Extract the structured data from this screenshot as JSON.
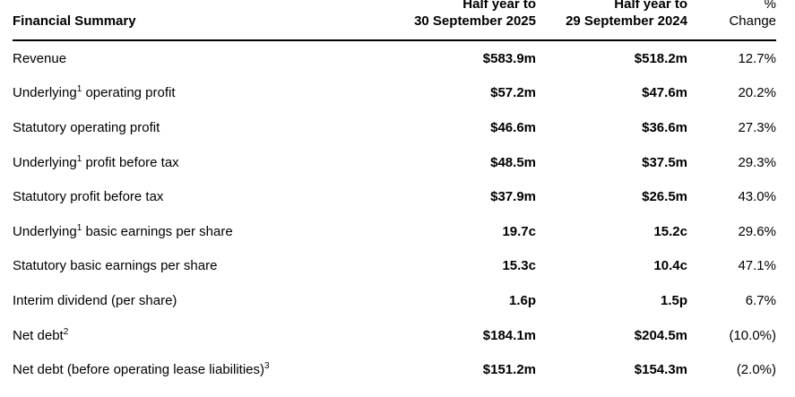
{
  "table": {
    "title": "Financial Summary",
    "header": {
      "col1": "Financial Summary",
      "col2_line1": "Half year to",
      "col2_line2": "30 September 2025",
      "col3_line1": "Half year to",
      "col3_line2": "29 September 2024",
      "col4_line1": "%",
      "col4_line2": "Change"
    },
    "rows": [
      {
        "label_pre": "Revenue",
        "sup": "",
        "label_post": "",
        "val_2025": "$583.9m",
        "val_2024": "$518.2m",
        "change": "12.7%"
      },
      {
        "label_pre": "Underlying",
        "sup": "1",
        "label_post": " operating profit",
        "val_2025": "$57.2m",
        "val_2024": "$47.6m",
        "change": "20.2%"
      },
      {
        "label_pre": "Statutory operating profit",
        "sup": "",
        "label_post": "",
        "val_2025": "$46.6m",
        "val_2024": "$36.6m",
        "change": "27.3%"
      },
      {
        "label_pre": "Underlying",
        "sup": "1",
        "label_post": " profit before tax",
        "val_2025": "$48.5m",
        "val_2024": "$37.5m",
        "change": "29.3%"
      },
      {
        "label_pre": "Statutory profit before tax",
        "sup": "",
        "label_post": "",
        "val_2025": "$37.9m",
        "val_2024": "$26.5m",
        "change": "43.0%"
      },
      {
        "label_pre": "Underlying",
        "sup": "1",
        "label_post": " basic earnings per share",
        "val_2025": "19.7c",
        "val_2024": "15.2c",
        "change": "29.6%"
      },
      {
        "label_pre": "Statutory basic earnings per share",
        "sup": "",
        "label_post": "",
        "val_2025": "15.3c",
        "val_2024": "10.4c",
        "change": "47.1%"
      },
      {
        "label_pre": "Interim dividend (per share)",
        "sup": "",
        "label_post": "",
        "val_2025": "1.6p",
        "val_2024": "1.5p",
        "change": "6.7%"
      },
      {
        "label_pre": "Net debt",
        "sup": "2",
        "label_post": "",
        "val_2025": "$184.1m",
        "val_2024": "$204.5m",
        "change": "(10.0%)"
      },
      {
        "label_pre": "Net debt (before operating lease liabilities)",
        "sup": "3",
        "label_post": "",
        "val_2025": "$151.2m",
        "val_2024": "$154.3m",
        "change": "(2.0%)"
      }
    ],
    "colors": {
      "text": "#000000",
      "background": "#ffffff",
      "rule": "#000000"
    }
  }
}
